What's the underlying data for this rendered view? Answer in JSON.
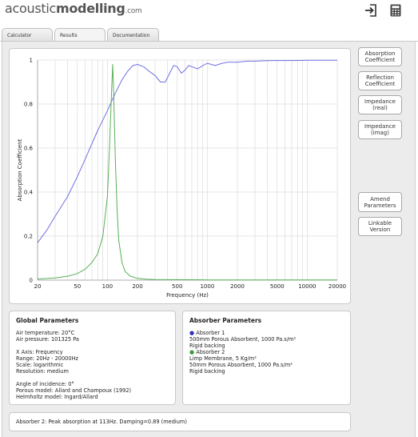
{
  "header": {
    "logo_part1": "acoustic",
    "logo_part2": "modelling",
    "logo_part3": ".com",
    "icons": [
      "login-icon",
      "calculator-icon"
    ]
  },
  "tabs": [
    {
      "label": "Calculator"
    },
    {
      "label": "Results"
    },
    {
      "label": "Documentation"
    }
  ],
  "sidebar_buttons": {
    "absorption": "Absorption Coefficient",
    "reflection": "Reflection Coefficient",
    "impedance_real": "Impedance (real)",
    "impedance_imag": "Impedance (imag)",
    "amend": "Amend Parameters",
    "linkable": "Linkable Version"
  },
  "global_params": {
    "title": "Global Parameters",
    "air_temperature": "Air temperature: 20°C",
    "air_pressure": "Air pressure: 101325 Pa",
    "x_axis": "X Axis: Frequency",
    "range": "Range: 20Hz - 20000Hz",
    "scale": "Scale: logarithmic",
    "resolution": "Resolution: medium",
    "angle": "Angle of incidence: 0°",
    "porous_model": "Porous model: Allard and Champoux (1992)",
    "helmholtz_model": "Helmholtz model: Ingard/Allard"
  },
  "absorber_params": {
    "title": "Absorber Parameters",
    "a1_name": "Absorber 1",
    "a1_line1": "500mm Porous Absorbent, 1000 Pa.s/m²",
    "a1_line2": "Rigid backing",
    "a2_name": "Absorber 2",
    "a2_line1": "Limp Membrane, 5 Kg/m²",
    "a2_line2": "50mm Porous Absorbent, 1000 Pa.s/m²",
    "a2_line3": "Rigid backing"
  },
  "status_text": "Absorber 2: Peak absorption at 113Hz. Damping=0.89 (medium)",
  "colors": {
    "series1": "#7070e0",
    "series2": "#58b058",
    "grid": "#dcdcdc"
  },
  "chart_data": {
    "type": "line",
    "xlabel": "Frequency (Hz)",
    "ylabel": "Absorption Coefficient",
    "xscale": "log",
    "xlim": [
      20,
      20000
    ],
    "ylim": [
      0,
      1
    ],
    "grid": true,
    "x_ticks": [
      "20",
      "50",
      "100",
      "200",
      "500",
      "1000",
      "2000",
      "5000",
      "10000",
      "20000"
    ],
    "y_ticks": [
      "0",
      "0.2",
      "0.4",
      "0.6",
      "0.8",
      "1"
    ],
    "series": [
      {
        "x": [
          20,
          25,
          30,
          40,
          50,
          60,
          70,
          80,
          100,
          120,
          140,
          160,
          180,
          200,
          230,
          260,
          300,
          340,
          380,
          420,
          460,
          500,
          550,
          600,
          650,
          700,
          800,
          900,
          1000,
          1100,
          1200,
          1400,
          1600,
          2000,
          2500,
          3000,
          4000,
          5000,
          7000,
          10000,
          15000,
          20000
        ],
        "y": [
          0.17,
          0.23,
          0.29,
          0.38,
          0.47,
          0.55,
          0.62,
          0.68,
          0.77,
          0.85,
          0.91,
          0.95,
          0.975,
          0.98,
          0.97,
          0.95,
          0.93,
          0.9,
          0.9,
          0.94,
          0.975,
          0.97,
          0.94,
          0.955,
          0.975,
          0.97,
          0.96,
          0.975,
          0.985,
          0.98,
          0.975,
          0.985,
          0.99,
          0.99,
          0.995,
          0.995,
          0.997,
          0.998,
          0.998,
          0.999,
          0.999,
          0.999
        ]
      },
      {
        "x": [
          20,
          30,
          40,
          50,
          60,
          70,
          80,
          90,
          100,
          105,
          110,
          113,
          116,
          120,
          125,
          130,
          140,
          150,
          170,
          200,
          250,
          300,
          500,
          1000,
          2000,
          5000,
          20000
        ],
        "y": [
          0.005,
          0.01,
          0.018,
          0.03,
          0.05,
          0.08,
          0.12,
          0.2,
          0.38,
          0.6,
          0.85,
          0.98,
          0.82,
          0.55,
          0.32,
          0.18,
          0.08,
          0.04,
          0.018,
          0.008,
          0.004,
          0.003,
          0.002,
          0.001,
          0.001,
          0.001,
          0.001
        ]
      }
    ]
  }
}
